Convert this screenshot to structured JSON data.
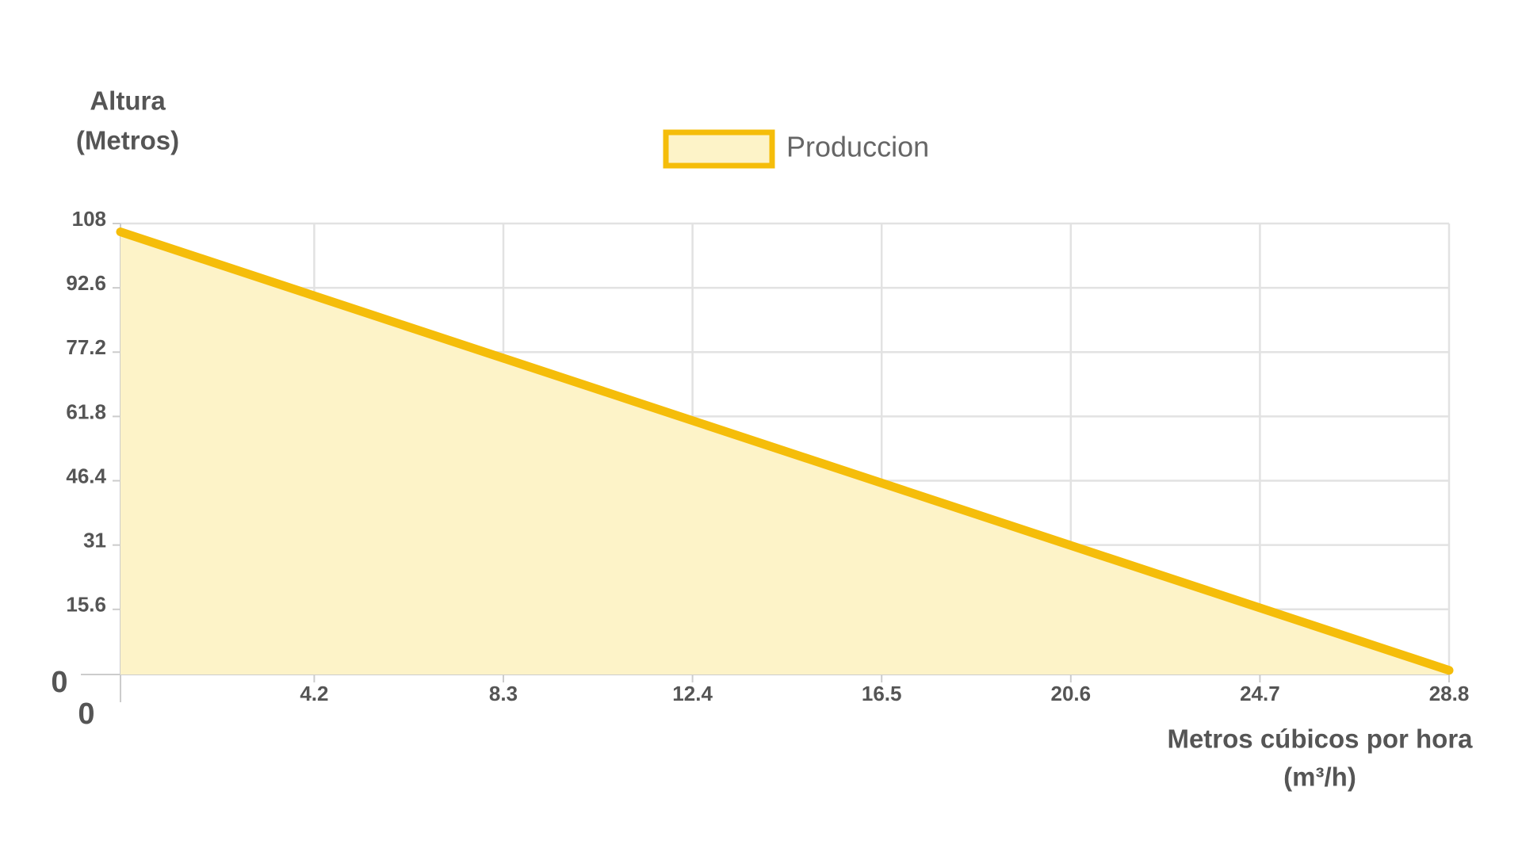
{
  "chart_data": {
    "type": "area",
    "y_label": [
      "Altura",
      "(Metros)"
    ],
    "x_label": [
      "Metros cúbicos por hora",
      "(m³/h)"
    ],
    "x": [
      0,
      28.8
    ],
    "series": [
      {
        "name": "Produccion",
        "color": "#f5bd0a",
        "fill": "#fdf3c8",
        "values": [
          106,
          1
        ]
      }
    ],
    "xlim": [
      0,
      28.8
    ],
    "xticks": [
      0,
      4.2,
      8.3,
      12.4,
      16.5,
      20.6,
      24.7,
      28.8
    ],
    "ylim": [
      0,
      108
    ],
    "yticks": [
      0,
      15.6,
      31,
      46.4,
      61.8,
      77.2,
      92.6,
      108
    ],
    "grid": true,
    "legend": "top"
  }
}
